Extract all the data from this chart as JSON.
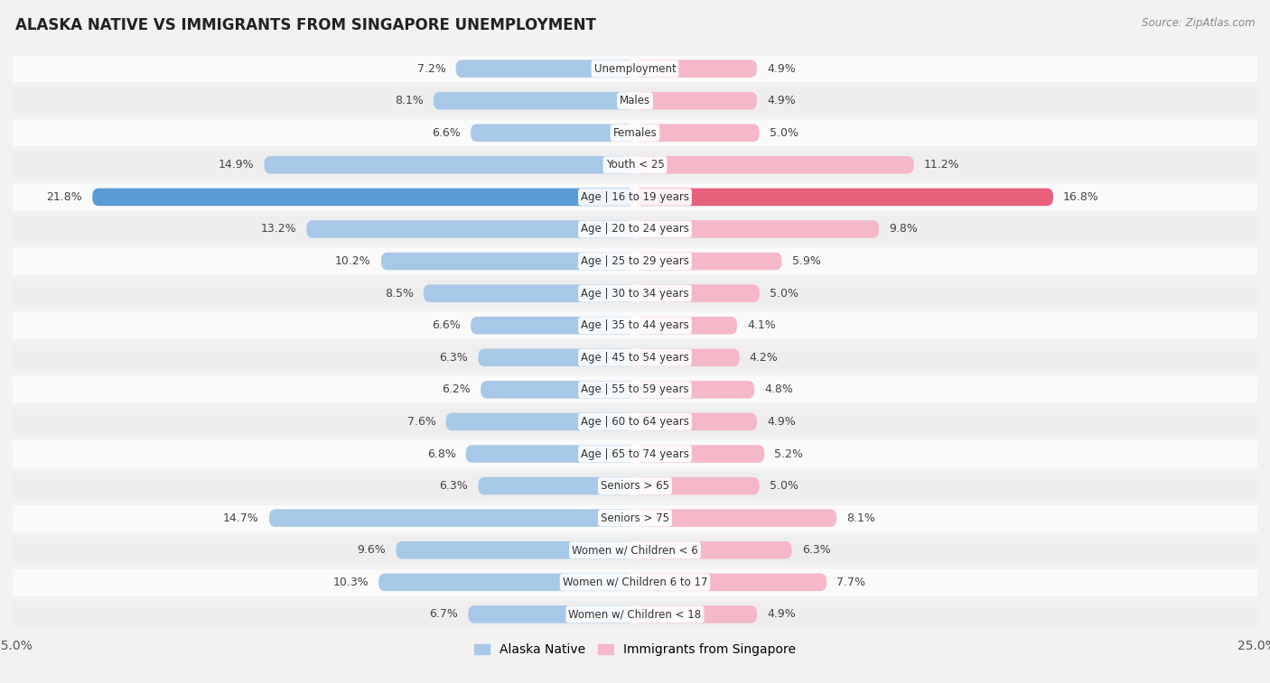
{
  "title": "ALASKA NATIVE VS IMMIGRANTS FROM SINGAPORE UNEMPLOYMENT",
  "source": "Source: ZipAtlas.com",
  "categories": [
    "Unemployment",
    "Males",
    "Females",
    "Youth < 25",
    "Age | 16 to 19 years",
    "Age | 20 to 24 years",
    "Age | 25 to 29 years",
    "Age | 30 to 34 years",
    "Age | 35 to 44 years",
    "Age | 45 to 54 years",
    "Age | 55 to 59 years",
    "Age | 60 to 64 years",
    "Age | 65 to 74 years",
    "Seniors > 65",
    "Seniors > 75",
    "Women w/ Children < 6",
    "Women w/ Children 6 to 17",
    "Women w/ Children < 18"
  ],
  "alaska_native": [
    7.2,
    8.1,
    6.6,
    14.9,
    21.8,
    13.2,
    10.2,
    8.5,
    6.6,
    6.3,
    6.2,
    7.6,
    6.8,
    6.3,
    14.7,
    9.6,
    10.3,
    6.7
  ],
  "immigrants_singapore": [
    4.9,
    4.9,
    5.0,
    11.2,
    16.8,
    9.8,
    5.9,
    5.0,
    4.1,
    4.2,
    4.8,
    4.9,
    5.2,
    5.0,
    8.1,
    6.3,
    7.7,
    4.9
  ],
  "alaska_color": "#a8c8e8",
  "singapore_color": "#f4b8c8",
  "alaska_highlight_color": "#5b9bd5",
  "singapore_highlight_color": "#e8607a",
  "background_color": "#f2f2f2",
  "row_color_light": "#fafafa",
  "row_color_dark": "#eeeeee",
  "axis_limit": 25.0,
  "legend_alaska": "Alaska Native",
  "legend_singapore": "Immigrants from Singapore"
}
